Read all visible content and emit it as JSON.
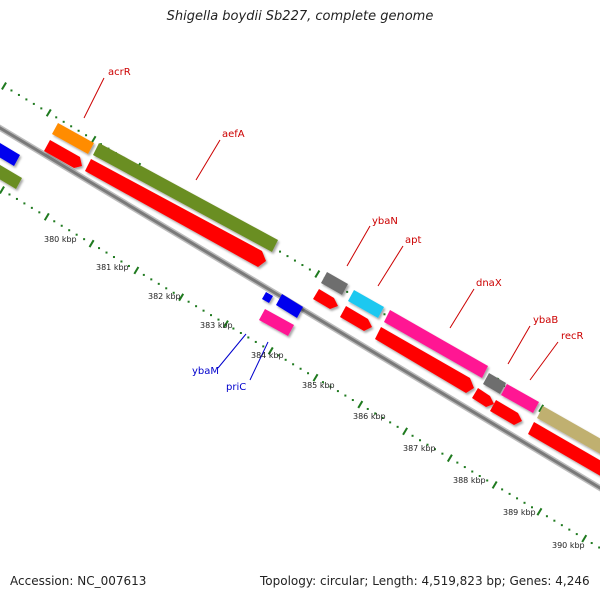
{
  "title": "Shigella boydii Sb227, complete genome",
  "accession": "Accession: NC_007613",
  "topology": "Topology: circular; Length: 4,519,823 bp; Genes: 4,246",
  "colors": {
    "backbone": "#8a8a8a",
    "tick": "#1f7a1f",
    "gene_label_forward": "#cc0000",
    "gene_label_reverse": "#0000cc"
  },
  "kbp_labels": [
    "380 kbp",
    "381 kbp",
    "382 kbp",
    "383 kbp",
    "384 kbp",
    "385 kbp",
    "386 kbp",
    "387 kbp",
    "388 kbp",
    "389 kbp",
    "390 kbp"
  ],
  "genes": [
    {
      "name": "acrR",
      "color": "#ff8c00",
      "strand": "+"
    },
    {
      "name": "aefA",
      "color": "#6b8e23",
      "strand": "+"
    },
    {
      "name": "ybaN",
      "color": "#6e6e6e",
      "strand": "+"
    },
    {
      "name": "apt",
      "color": "#1ec8f0",
      "strand": "+"
    },
    {
      "name": "dnaX",
      "color": "#ff1493",
      "strand": "+"
    },
    {
      "name": "ybaB",
      "color": "#6e6e6e",
      "strand": "+"
    },
    {
      "name": "recR",
      "color": "#ff1493",
      "strand": "+"
    },
    {
      "name": "ybaM",
      "color": "#0000ee",
      "strand": "-"
    },
    {
      "name": "priC",
      "color": "#ff1493",
      "strand": "-"
    }
  ]
}
